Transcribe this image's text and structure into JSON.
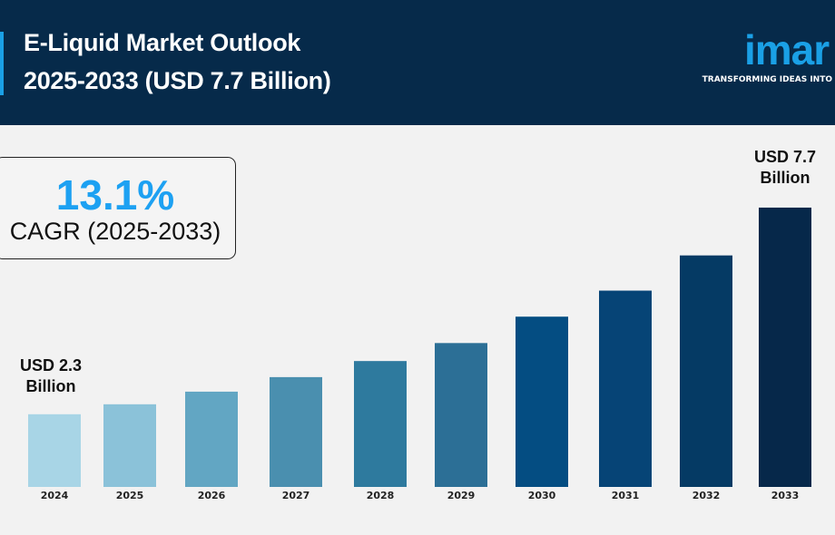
{
  "header": {
    "title_line1": "E-Liquid Market Outlook",
    "title_line2": "2025-2033 (USD 7.7 Billion)",
    "logo_text": "imar",
    "logo_tagline": "TRANSFORMING IDEAS INTO"
  },
  "cagr": {
    "value": "13.1%",
    "label": "CAGR (2025-2033)"
  },
  "annotations": {
    "start_line1": "USD 2.3",
    "start_line2": "Billion",
    "end_line1": "USD 7.7",
    "end_line2": "Billion"
  },
  "colors": {
    "header": "#062a4a",
    "accent": "#1aa0e6"
  },
  "chart_data": {
    "type": "bar",
    "categories": [
      "2024",
      "2025",
      "2026",
      "2027",
      "2028",
      "2029",
      "2030",
      "2031",
      "2032",
      "2033"
    ],
    "values": [
      2.3,
      2.56,
      2.89,
      3.27,
      3.69,
      4.16,
      4.85,
      5.53,
      6.45,
      7.7
    ],
    "colors": [
      "#a8d5e6",
      "#8bc2d9",
      "#62a6c3",
      "#4a8faf",
      "#2e7a9e",
      "#2c6f96",
      "#044d82",
      "#064476",
      "#053a64",
      "#06284a"
    ],
    "ylim": [
      0.4,
      8.0
    ],
    "grid": false,
    "xlabel": "",
    "ylabel": ""
  }
}
